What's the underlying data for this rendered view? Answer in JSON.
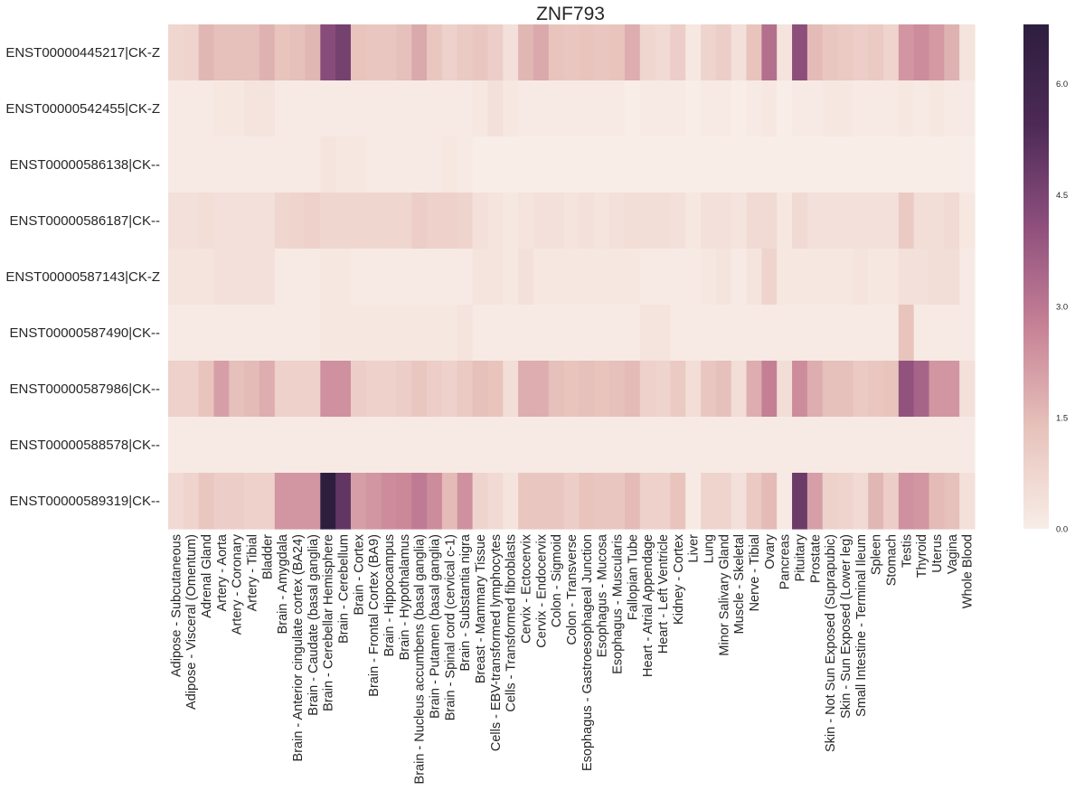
{
  "chart_data": {
    "type": "heatmap",
    "title": "ZNF793",
    "rows": [
      "ENST00000445217|CK-Z",
      "ENST00000542455|CK-Z",
      "ENST00000586138|CK--",
      "ENST00000586187|CK--",
      "ENST00000587143|CK-Z",
      "ENST00000587490|CK--",
      "ENST00000587986|CK--",
      "ENST00000588578|CK--",
      "ENST00000589319|CK--"
    ],
    "columns": [
      "Adipose - Subcutaneous",
      "Adipose - Visceral (Omentum)",
      "Adrenal Gland",
      "Artery - Aorta",
      "Artery - Coronary",
      "Artery - Tibial",
      "Bladder",
      "Brain - Amygdala",
      "Brain - Anterior cingulate cortex (BA24)",
      "Brain - Caudate (basal ganglia)",
      "Brain - Cerebellar Hemisphere",
      "Brain - Cerebellum",
      "Brain - Cortex",
      "Brain - Frontal Cortex (BA9)",
      "Brain - Hippocampus",
      "Brain - Hypothalamus",
      "Brain - Nucleus accumbens (basal ganglia)",
      "Brain - Putamen (basal ganglia)",
      "Brain - Spinal cord (cervical c-1)",
      "Brain - Substantia nigra",
      "Breast - Mammary Tissue",
      "Cells - EBV-transformed lymphocytes",
      "Cells - Transformed fibroblasts",
      "Cervix - Ectocervix",
      "Cervix - Endocervix",
      "Colon - Sigmoid",
      "Colon - Transverse",
      "Esophagus - Gastroesophageal Junction",
      "Esophagus - Mucosa",
      "Esophagus - Muscularis",
      "Fallopian Tube",
      "Heart - Atrial Appendage",
      "Heart - Left Ventricle",
      "Kidney - Cortex",
      "Liver",
      "Lung",
      "Minor Salivary Gland",
      "Muscle - Skeletal",
      "Nerve - Tibial",
      "Ovary",
      "Pancreas",
      "Pituitary",
      "Prostate",
      "Skin - Not Sun Exposed (Suprapubic)",
      "Skin - Sun Exposed (Lower leg)",
      "Small Intestine - Terminal Ileum",
      "Spleen",
      "Stomach",
      "Testis",
      "Thyroid",
      "Uterus",
      "Vagina",
      "Whole Blood"
    ],
    "values": [
      [
        0.7,
        0.8,
        1.6,
        1.4,
        1.4,
        1.4,
        1.7,
        1.3,
        1.4,
        1.6,
        4.2,
        4.6,
        1.3,
        1.2,
        1.2,
        1.4,
        1.9,
        1.2,
        0.9,
        1.1,
        1.2,
        1.0,
        0.4,
        1.6,
        1.9,
        1.3,
        1.2,
        1.3,
        1.2,
        1.3,
        1.8,
        0.7,
        0.6,
        1.0,
        0.2,
        0.8,
        1.0,
        0.4,
        1.3,
        3.2,
        0.3,
        4.1,
        1.5,
        1.2,
        1.1,
        1.0,
        1.1,
        0.8,
        2.3,
        2.5,
        2.2,
        1.7,
        0.3
      ],
      [
        0.1,
        0.1,
        0.1,
        0.2,
        0.2,
        0.3,
        0.3,
        0.1,
        0.1,
        0.1,
        0.1,
        0.1,
        0.1,
        0.1,
        0.1,
        0.1,
        0.1,
        0.1,
        0.1,
        0.1,
        0.2,
        0.4,
        0.2,
        0.1,
        0.1,
        0.1,
        0.1,
        0.1,
        0.1,
        0.1,
        0.0,
        0.1,
        0.1,
        0.1,
        0.0,
        0.1,
        0.1,
        0.0,
        0.1,
        0.2,
        0.0,
        0.1,
        0.1,
        0.2,
        0.2,
        0.1,
        0.1,
        0.1,
        0.2,
        0.1,
        0.2,
        0.1,
        0.1
      ],
      [
        0.1,
        0.1,
        0.1,
        0.1,
        0.1,
        0.1,
        0.1,
        0.1,
        0.1,
        0.1,
        0.3,
        0.2,
        0.2,
        0.1,
        0.1,
        0.1,
        0.1,
        0.1,
        0.2,
        0.1,
        0.0,
        0.0,
        0.0,
        0.0,
        0.0,
        0.0,
        0.0,
        0.0,
        0.0,
        0.0,
        0.0,
        0.0,
        0.0,
        0.0,
        0.0,
        0.0,
        0.0,
        0.0,
        0.0,
        0.0,
        0.0,
        0.0,
        0.0,
        0.0,
        0.0,
        0.0,
        0.0,
        0.0,
        0.0,
        0.0,
        0.0,
        0.0,
        0.0
      ],
      [
        0.4,
        0.4,
        0.5,
        0.4,
        0.4,
        0.4,
        0.4,
        0.7,
        0.8,
        0.9,
        0.7,
        0.7,
        0.7,
        0.7,
        0.7,
        0.7,
        1.0,
        0.9,
        0.9,
        0.8,
        0.4,
        0.3,
        0.2,
        0.3,
        0.4,
        0.4,
        0.3,
        0.4,
        0.3,
        0.4,
        0.5,
        0.5,
        0.5,
        0.4,
        0.2,
        0.4,
        0.4,
        0.3,
        0.6,
        0.6,
        0.2,
        0.6,
        0.4,
        0.4,
        0.4,
        0.4,
        0.4,
        0.4,
        1.1,
        0.5,
        0.5,
        0.6,
        0.2
      ],
      [
        0.3,
        0.3,
        0.3,
        0.4,
        0.4,
        0.4,
        0.4,
        0.1,
        0.1,
        0.1,
        0.2,
        0.2,
        0.1,
        0.1,
        0.1,
        0.1,
        0.1,
        0.1,
        0.1,
        0.1,
        0.3,
        0.3,
        0.2,
        0.4,
        0.2,
        0.2,
        0.2,
        0.2,
        0.2,
        0.2,
        0.2,
        0.1,
        0.1,
        0.1,
        0.1,
        0.2,
        0.3,
        0.1,
        0.3,
        0.8,
        0.2,
        0.2,
        0.2,
        0.2,
        0.2,
        0.3,
        0.2,
        0.2,
        0.4,
        0.4,
        0.5,
        0.5,
        0.1
      ],
      [
        0.1,
        0.1,
        0.1,
        0.1,
        0.1,
        0.1,
        0.1,
        0.1,
        0.1,
        0.1,
        0.2,
        0.2,
        0.2,
        0.2,
        0.2,
        0.2,
        0.2,
        0.2,
        0.2,
        0.3,
        0.1,
        0.1,
        0.1,
        0.1,
        0.1,
        0.1,
        0.1,
        0.1,
        0.1,
        0.1,
        0.1,
        0.3,
        0.3,
        0.1,
        0.1,
        0.1,
        0.1,
        0.1,
        0.1,
        0.1,
        0.1,
        0.1,
        0.1,
        0.1,
        0.1,
        0.1,
        0.1,
        0.1,
        1.3,
        0.1,
        0.1,
        0.1,
        0.1
      ],
      [
        0.9,
        0.9,
        1.3,
        2.1,
        1.4,
        1.5,
        1.8,
        0.9,
        0.9,
        0.9,
        2.4,
        2.4,
        1.0,
        0.9,
        0.9,
        1.0,
        1.2,
        1.0,
        0.9,
        1.1,
        1.4,
        1.3,
        0.5,
        1.8,
        1.8,
        1.4,
        1.3,
        1.4,
        1.3,
        1.4,
        1.5,
        0.9,
        0.8,
        1.1,
        0.5,
        1.2,
        1.4,
        0.5,
        1.8,
        2.8,
        0.5,
        2.5,
        1.8,
        1.4,
        1.4,
        1.1,
        1.2,
        1.3,
        4.0,
        3.5,
        2.3,
        2.3,
        0.4
      ],
      [
        0.1,
        0.1,
        0.1,
        0.1,
        0.1,
        0.1,
        0.1,
        0.1,
        0.1,
        0.1,
        0.1,
        0.1,
        0.1,
        0.1,
        0.1,
        0.1,
        0.1,
        0.1,
        0.1,
        0.1,
        0.1,
        0.1,
        0.1,
        0.1,
        0.1,
        0.1,
        0.1,
        0.1,
        0.1,
        0.1,
        0.1,
        0.1,
        0.1,
        0.1,
        0.1,
        0.1,
        0.1,
        0.1,
        0.1,
        0.1,
        0.1,
        0.1,
        0.1,
        0.1,
        0.1,
        0.1,
        0.1,
        0.1,
        0.1,
        0.1,
        0.1,
        0.1,
        0.1
      ],
      [
        0.6,
        0.8,
        1.2,
        1.0,
        1.0,
        0.9,
        0.9,
        2.3,
        2.3,
        2.3,
        6.8,
        5.0,
        2.1,
        2.3,
        2.5,
        2.6,
        2.9,
        2.5,
        1.5,
        2.4,
        0.8,
        0.6,
        0.3,
        1.2,
        1.2,
        1.2,
        1.0,
        1.3,
        1.2,
        1.2,
        1.5,
        0.9,
        0.9,
        1.3,
        0.1,
        0.8,
        0.8,
        0.4,
        1.1,
        1.5,
        0.1,
        4.8,
        2.1,
        0.9,
        0.8,
        0.6,
        1.6,
        1.0,
        2.4,
        2.3,
        1.5,
        1.4,
        0.4
      ]
    ],
    "vmin": 0.0,
    "vmax": 6.8,
    "colorbar_ticks": [
      "0.0",
      "1.5",
      "3.0",
      "4.5",
      "6.0"
    ],
    "colormap": [
      "#f8ede7",
      "#e7c2bb",
      "#c78296",
      "#8e4f7d",
      "#4d2a56",
      "#2d1e3e"
    ]
  }
}
